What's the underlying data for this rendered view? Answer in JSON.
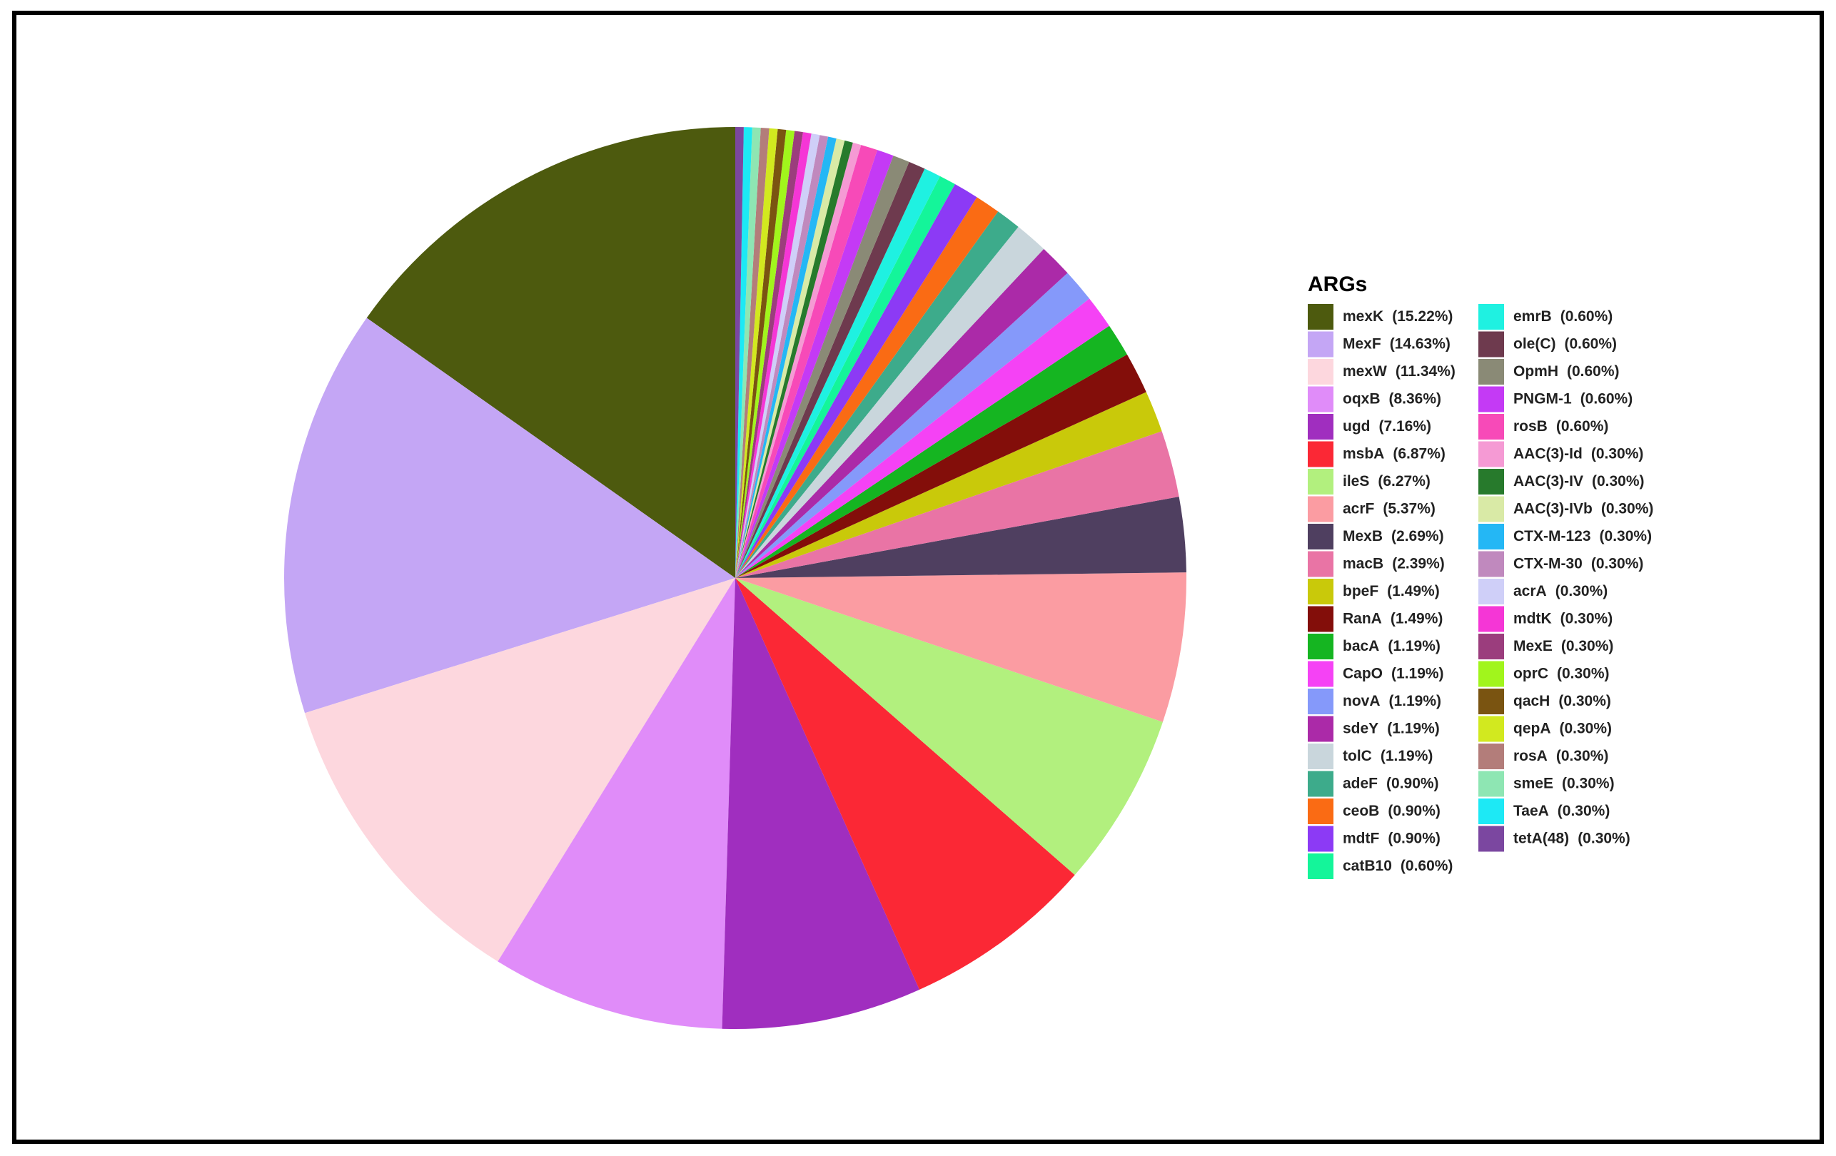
{
  "chart_data": {
    "type": "pie",
    "legend_title": "ARGs",
    "legend": "right",
    "categories": [
      "mexK",
      "MexF",
      "mexW",
      "oqxB",
      "ugd",
      "msbA",
      "ileS",
      "acrF",
      "MexB",
      "macB",
      "bpeF",
      "RanA",
      "bacA",
      "CapO",
      "novA",
      "sdeY",
      "tolC",
      "adeF",
      "ceoB",
      "mdtF",
      "catB10",
      "emrB",
      "ole(C)",
      "OpmH",
      "PNGM-1",
      "rosB",
      "AAC(3)-Id",
      "AAC(3)-IV",
      "AAC(3)-IVb",
      "CTX-M-123",
      "CTX-M-30",
      "acrA",
      "mdtK",
      "MexE",
      "oprC",
      "qacH",
      "qepA",
      "rosA",
      "smeE",
      "TaeA",
      "tetA(48)"
    ],
    "values": [
      15.22,
      14.63,
      11.34,
      8.36,
      7.16,
      6.87,
      6.27,
      5.37,
      2.69,
      2.39,
      1.49,
      1.49,
      1.19,
      1.19,
      1.19,
      1.19,
      1.19,
      0.9,
      0.9,
      0.9,
      0.6,
      0.6,
      0.6,
      0.6,
      0.6,
      0.6,
      0.3,
      0.3,
      0.3,
      0.3,
      0.3,
      0.3,
      0.3,
      0.3,
      0.3,
      0.3,
      0.3,
      0.3,
      0.3,
      0.3,
      0.3
    ],
    "value_labels": [
      "(15.22%)",
      "(14.63%)",
      "(11.34%)",
      "(8.36%)",
      "(7.16%)",
      "(6.87%)",
      "(6.27%)",
      "(5.37%)",
      "(2.69%)",
      "(2.39%)",
      "(1.49%)",
      "(1.49%)",
      "(1.19%)",
      "(1.19%)",
      "(1.19%)",
      "(1.19%)",
      "(1.19%)",
      "(0.90%)",
      "(0.90%)",
      "(0.90%)",
      "(0.60%)",
      "(0.60%)",
      "(0.60%)",
      "(0.60%)",
      "(0.60%)",
      "(0.60%)",
      "(0.30%)",
      "(0.30%)",
      "(0.30%)",
      "(0.30%)",
      "(0.30%)",
      "(0.30%)",
      "(0.30%)",
      "(0.30%)",
      "(0.30%)",
      "(0.30%)",
      "(0.30%)",
      "(0.30%)",
      "(0.30%)",
      "(0.30%)",
      "(0.30%)"
    ],
    "colors": [
      "#4d5a0e",
      "#c4a6f5",
      "#fdd7de",
      "#e08cf9",
      "#a02ebf",
      "#fb2835",
      "#b2f07e",
      "#fb9ca2",
      "#4f3f60",
      "#e974a5",
      "#c9c90a",
      "#830e0a",
      "#15b521",
      "#f542f5",
      "#8599fa",
      "#ab2aa8",
      "#c9d6dc",
      "#3dab8b",
      "#fa6b14",
      "#8c3af5",
      "#14f59a",
      "#1ff1e1",
      "#6e3a4e",
      "#8a8a76",
      "#c43af5",
      "#f74ab8",
      "#f59ad4",
      "#277a2c",
      "#d9eaa6",
      "#24b7f5",
      "#c089be",
      "#cfcff8",
      "#f536d6",
      "#9b3d7d",
      "#a1f51c",
      "#7a5411",
      "#d2e91f",
      "#b37d7a",
      "#8ee6b3",
      "#1de9f5",
      "#7b47a0"
    ]
  }
}
